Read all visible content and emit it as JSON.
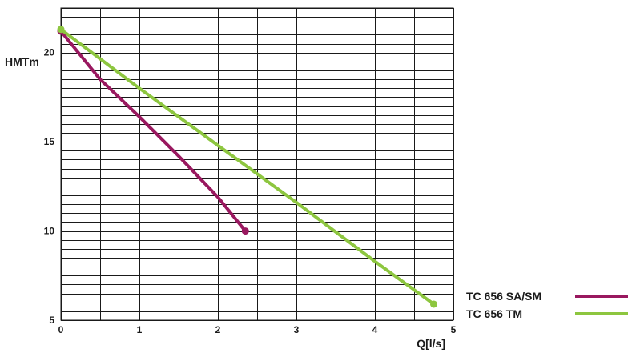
{
  "chart_data": {
    "type": "line",
    "xlabel": "Q[l/s]",
    "ylabel": "HMTm",
    "xlim": [
      0,
      5
    ],
    "ylim": [
      5,
      22.5
    ],
    "xticks": [
      0,
      1,
      2,
      3,
      4,
      5
    ],
    "yticks": [
      5,
      10,
      15,
      20
    ],
    "x_grid_step": 0.5,
    "y_grid_step": 0.5,
    "grid": true,
    "legend_position": "bottom-right",
    "series": [
      {
        "name": "TC 656 SA/SM",
        "color": "#99185f",
        "marker_color": "#99185f",
        "points": [
          [
            0.0,
            21.2
          ],
          [
            0.5,
            18.5
          ],
          [
            1.0,
            16.4
          ],
          [
            1.5,
            14.2
          ],
          [
            2.0,
            11.9
          ],
          [
            2.35,
            10.0
          ]
        ]
      },
      {
        "name": "TC 656 TM",
        "color": "#8dc63f",
        "marker_color": "#8dc63f",
        "points": [
          [
            0.0,
            21.3
          ],
          [
            1.0,
            18.0
          ],
          [
            2.0,
            14.8
          ],
          [
            3.0,
            11.6
          ],
          [
            4.0,
            8.3
          ],
          [
            4.75,
            5.9
          ]
        ]
      }
    ]
  }
}
